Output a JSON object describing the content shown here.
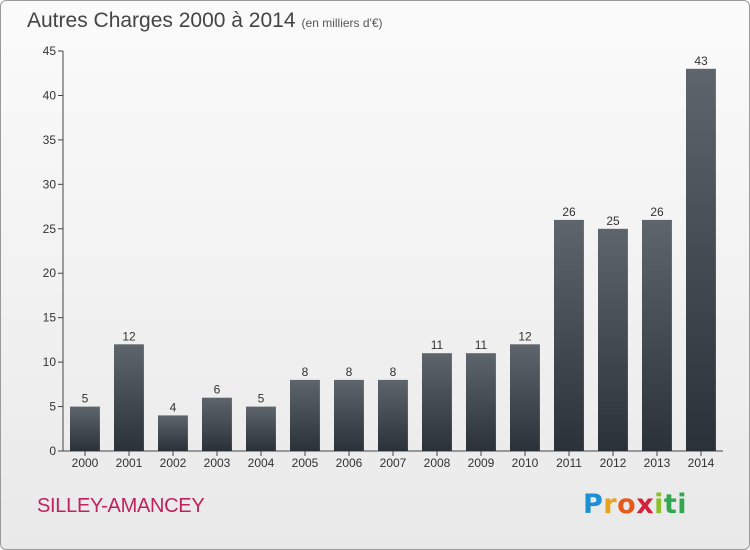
{
  "header": {
    "title": "Autres Charges 2000 à 2014",
    "subtitle": "(en milliers d'€)"
  },
  "footer": {
    "commune": "SILLEY-AMANCEY",
    "logo": [
      "P",
      "r",
      "o",
      "x",
      "i",
      "ti"
    ]
  },
  "chart_data": {
    "type": "bar",
    "title": "Autres Charges 2000 à 2014",
    "subtitle": "(en milliers d'€)",
    "categories": [
      "2000",
      "2001",
      "2002",
      "2003",
      "2004",
      "2005",
      "2006",
      "2007",
      "2008",
      "2009",
      "2010",
      "2011",
      "2012",
      "2013",
      "2014"
    ],
    "values": [
      5,
      12,
      4,
      6,
      5,
      8,
      8,
      8,
      11,
      11,
      12,
      26,
      25,
      26,
      43
    ],
    "ylim": [
      0,
      45
    ],
    "yticks": [
      0,
      5,
      10,
      15,
      20,
      25,
      30,
      35,
      40,
      45
    ],
    "grid": false,
    "legend": "none",
    "colors": {
      "bar_top": "#5e656c",
      "bar_bottom": "#2b3138",
      "axis": "#444444"
    }
  }
}
